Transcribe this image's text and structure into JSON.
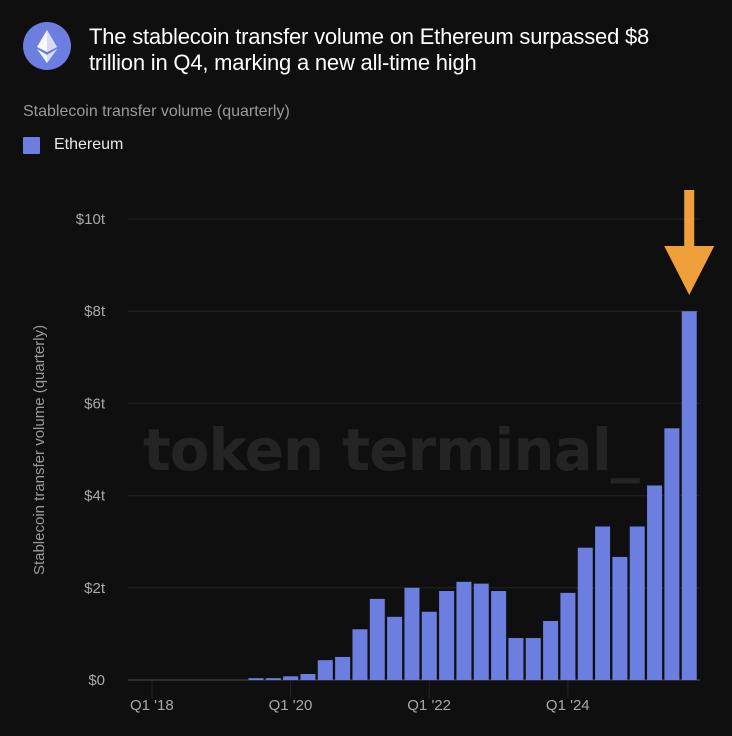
{
  "header": {
    "logo": "ethereum-logo-icon",
    "title": "The stablecoin transfer volume on Ethereum surpassed $8 trillion in Q4, marking a new all-time high"
  },
  "subtitle": "Stablecoin transfer volume (quarterly)",
  "legend": [
    {
      "label": "Ethereum",
      "color": "#6c7fe0"
    }
  ],
  "watermark": "token terminal_",
  "annotation": {
    "type": "arrow-down",
    "target": "Q4 '25",
    "color": "#f0a03a"
  },
  "colors": {
    "background": "#0f0f0f",
    "bar": "#6c7fe0",
    "grid": "#1e1e1e",
    "arrow": "#f0a03a"
  },
  "chart_data": {
    "type": "bar",
    "title": "Stablecoin transfer volume (quarterly)",
    "xlabel": "",
    "ylabel": "Stablecoin transfer volume (quarterly)",
    "ylim": [
      0,
      10
    ],
    "yunit": "trillion USD",
    "yticks": [
      0,
      2,
      4,
      6,
      8,
      10
    ],
    "ytick_labels": [
      "$0",
      "$2t",
      "$4t",
      "$6t",
      "$8t",
      "$10t"
    ],
    "xtick_labels": [
      "Q1 '18",
      "Q1 '20",
      "Q1 '22",
      "Q1 '24"
    ],
    "grid": true,
    "legend_position": "top-left",
    "categories": [
      "Q1 '18",
      "Q2 '18",
      "Q3 '18",
      "Q4 '18",
      "Q1 '19",
      "Q2 '19",
      "Q3 '19",
      "Q4 '19",
      "Q1 '20",
      "Q2 '20",
      "Q3 '20",
      "Q4 '20",
      "Q1 '21",
      "Q2 '21",
      "Q3 '21",
      "Q4 '21",
      "Q1 '22",
      "Q2 '22",
      "Q3 '22",
      "Q4 '22",
      "Q1 '23",
      "Q2 '23",
      "Q3 '23",
      "Q4 '23",
      "Q1 '24",
      "Q2 '24",
      "Q3 '24",
      "Q4 '24",
      "Q1 '25",
      "Q2 '25",
      "Q3 '25",
      "Q4 '25"
    ],
    "series": [
      {
        "name": "Ethereum",
        "values": [
          0,
          0,
          0,
          0,
          0,
          0,
          0.04,
          0.04,
          0.08,
          0.13,
          0.43,
          0.5,
          1.1,
          1.76,
          1.37,
          2.0,
          1.48,
          1.93,
          2.13,
          2.09,
          1.93,
          0.91,
          0.91,
          1.28,
          1.89,
          2.87,
          3.33,
          2.67,
          3.33,
          4.22,
          5.46,
          8.0
        ]
      }
    ]
  }
}
